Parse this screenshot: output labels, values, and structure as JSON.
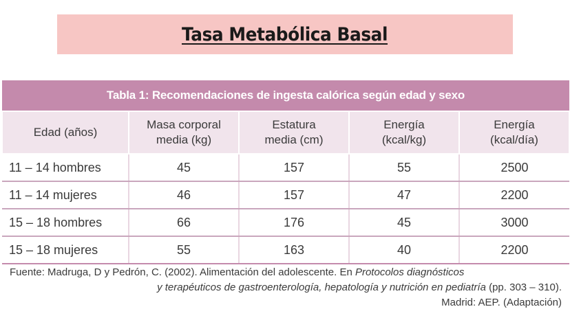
{
  "title": "Tasa Metabólica Basal",
  "table": {
    "caption": "Tabla 1: Recomendaciones de ingesta calórica según edad y sexo",
    "headers": [
      [
        "Edad (años)"
      ],
      [
        "Masa corporal",
        "media (kg)"
      ],
      [
        "Estatura",
        "media (cm)"
      ],
      [
        "Energía",
        "(kcal/kg)"
      ],
      [
        "Energía",
        "(kcal/día)"
      ]
    ],
    "rows": [
      [
        "11 – 14 hombres",
        "45",
        "157",
        "55",
        "2500"
      ],
      [
        "11 – 14 mujeres",
        "46",
        "157",
        "47",
        "2200"
      ],
      [
        "15 – 18 hombres",
        "66",
        "176",
        "45",
        "3000"
      ],
      [
        "15 – 18 mujeres",
        "55",
        "163",
        "40",
        "2200"
      ]
    ]
  },
  "source": {
    "label": "Fuente:",
    "text1": " Madruga, D y Pedrón, C. (2002). Alimentación del adolescente. En ",
    "italic1": "Protocolos diagnósticos",
    "italic2": "y terapéuticos de gastroenterología, hepatología y nutrición en pediatría",
    "text2": " (pp. 303 – 310).",
    "text3": "Madrid: AEP. (Adaptación)"
  }
}
